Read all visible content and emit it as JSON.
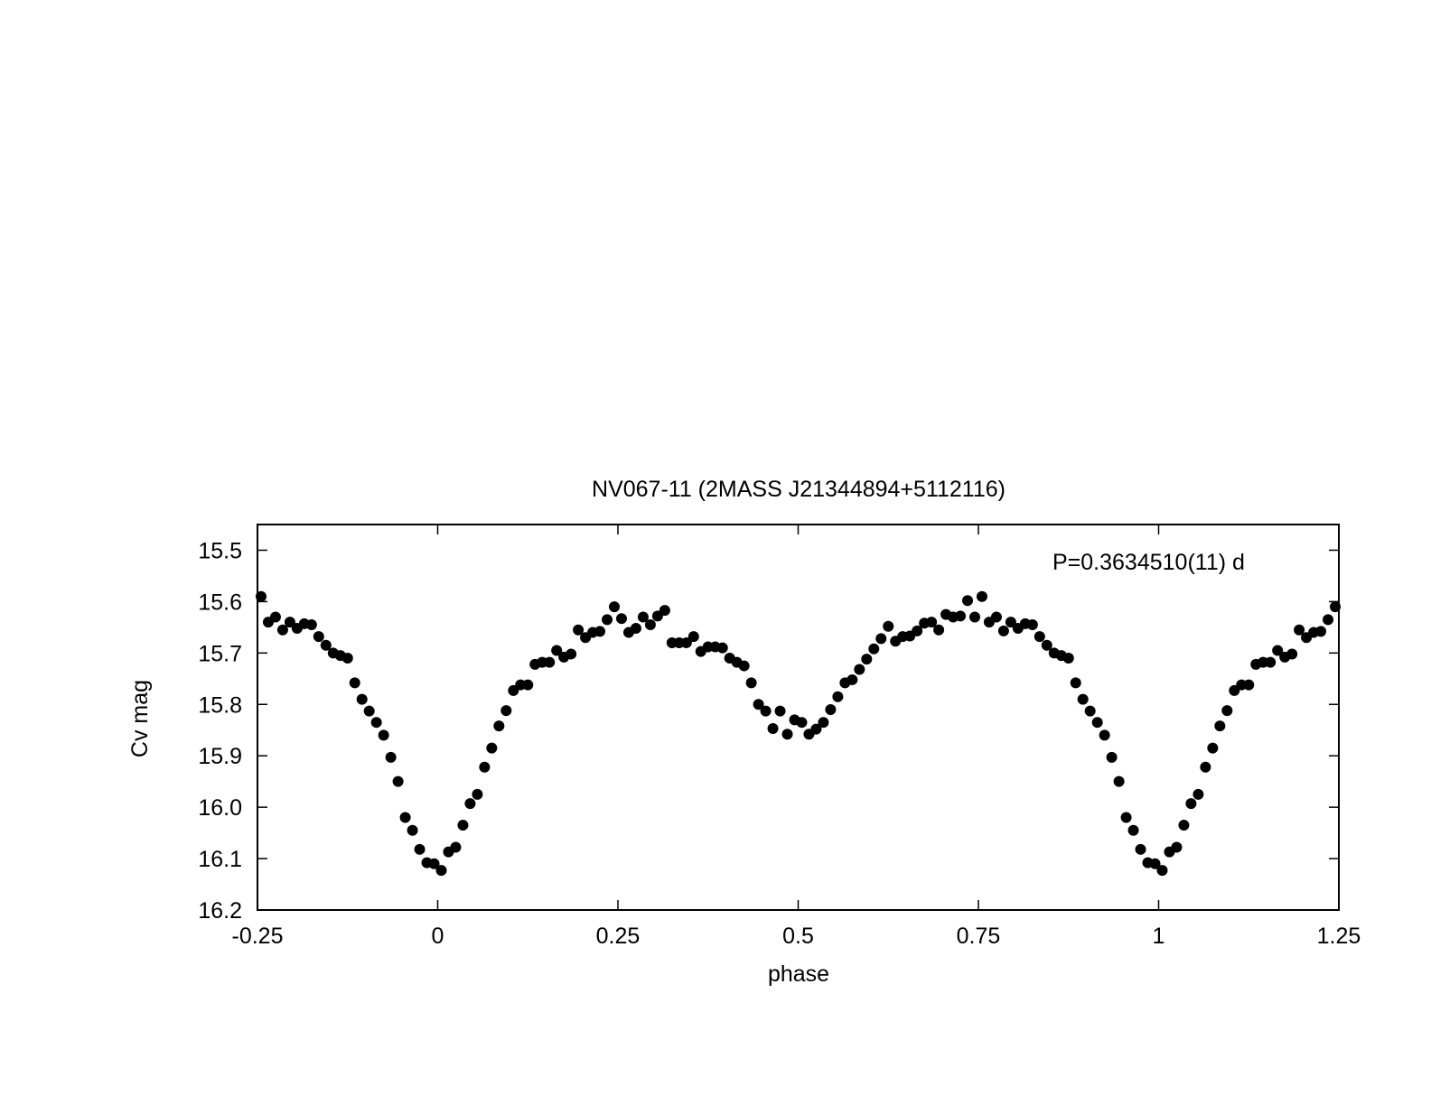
{
  "chart_data": {
    "type": "scatter",
    "title": "NV067-11 (2MASS J21344894+5112116)",
    "xlabel": "phase",
    "ylabel": "Cv mag",
    "xlim": [
      -0.25,
      1.25
    ],
    "ylim": [
      15.45,
      16.2
    ],
    "y_inverted": true,
    "grid": false,
    "annotation": "P=0.3634510(11) d",
    "x_ticks": [
      {
        "value": -0.25,
        "label": "-0.25"
      },
      {
        "value": 0,
        "label": "0"
      },
      {
        "value": 0.25,
        "label": "0.25"
      },
      {
        "value": 0.5,
        "label": "0.5"
      },
      {
        "value": 0.75,
        "label": "0.75"
      },
      {
        "value": 1,
        "label": "1"
      },
      {
        "value": 1.25,
        "label": "1.25"
      }
    ],
    "y_ticks": [
      {
        "value": 15.5,
        "label": "15.5"
      },
      {
        "value": 15.6,
        "label": "15.6"
      },
      {
        "value": 15.7,
        "label": "15.7"
      },
      {
        "value": 15.8,
        "label": "15.8"
      },
      {
        "value": 15.9,
        "label": "15.9"
      },
      {
        "value": 16.0,
        "label": "16.0"
      },
      {
        "value": 16.1,
        "label": "16.1"
      },
      {
        "value": 16.2,
        "label": "16.2"
      }
    ],
    "marker_color": "#000000",
    "series": [
      {
        "x": [
          -0.245,
          -0.235,
          -0.225,
          -0.215,
          -0.205,
          -0.195,
          -0.185,
          -0.175,
          -0.165,
          -0.155,
          -0.145,
          -0.135,
          -0.125,
          -0.115,
          -0.105,
          -0.095,
          -0.085,
          -0.075,
          -0.065,
          -0.055,
          -0.045,
          -0.035,
          -0.025,
          -0.015,
          -0.005,
          0.005,
          0.015,
          0.025,
          0.035,
          0.045,
          0.055,
          0.065,
          0.075,
          0.085,
          0.095,
          0.105,
          0.115,
          0.125,
          0.135,
          0.145,
          0.155,
          0.165,
          0.175,
          0.185,
          0.195,
          0.205,
          0.215,
          0.225,
          0.235,
          0.245,
          0.255,
          0.265,
          0.275,
          0.285,
          0.295,
          0.305,
          0.315,
          0.325,
          0.335,
          0.345,
          0.355,
          0.365,
          0.375,
          0.385,
          0.395,
          0.405,
          0.415,
          0.425,
          0.435,
          0.445,
          0.455,
          0.465,
          0.475,
          0.485,
          0.495,
          0.505,
          0.515,
          0.525,
          0.535,
          0.545,
          0.555,
          0.565,
          0.575,
          0.585,
          0.595,
          0.605,
          0.615,
          0.625,
          0.635,
          0.645,
          0.655,
          0.665,
          0.675,
          0.685,
          0.695,
          0.705,
          0.715,
          0.725,
          0.735,
          0.745,
          0.755,
          0.765,
          0.775,
          0.785,
          0.795,
          0.805,
          0.815,
          0.825,
          0.835,
          0.845,
          0.855,
          0.865,
          0.875,
          0.885,
          0.895,
          0.905,
          0.915,
          0.925,
          0.935,
          0.945,
          0.955,
          0.965,
          0.975,
          0.985,
          0.995,
          1.005,
          1.015,
          1.025,
          1.035,
          1.045,
          1.055,
          1.065,
          1.075,
          1.085,
          1.095,
          1.105,
          1.115,
          1.125,
          1.135,
          1.145,
          1.155,
          1.165,
          1.175,
          1.185,
          1.195,
          1.205,
          1.215,
          1.225,
          1.235,
          1.245
        ],
        "y": [
          15.59,
          15.64,
          15.63,
          15.655,
          15.64,
          15.652,
          15.643,
          15.645,
          15.668,
          15.685,
          15.7,
          15.705,
          15.71,
          15.758,
          15.79,
          15.813,
          15.835,
          15.86,
          15.903,
          15.95,
          16.02,
          16.045,
          16.082,
          16.108,
          16.11,
          16.123,
          16.087,
          16.078,
          16.035,
          15.993,
          15.975,
          15.922,
          15.885,
          15.842,
          15.812,
          15.773,
          15.762,
          15.762,
          15.722,
          15.718,
          15.718,
          15.695,
          15.708,
          15.702,
          15.655,
          15.67,
          15.66,
          15.658,
          15.635,
          15.61,
          15.633,
          15.66,
          15.652,
          15.63,
          15.645,
          15.628,
          15.617,
          15.68,
          15.68,
          15.68,
          15.668,
          15.697,
          15.688,
          15.688,
          15.69,
          15.71,
          15.718,
          15.725,
          15.758,
          15.8,
          15.813,
          15.847,
          15.813,
          15.858,
          15.83,
          15.835,
          15.858,
          15.848,
          15.835,
          15.81,
          15.785,
          15.758,
          15.752,
          15.732,
          15.712,
          15.692,
          15.672,
          15.648,
          15.677,
          15.668,
          15.667,
          15.657,
          15.642,
          15.64,
          15.655,
          15.625,
          15.63,
          15.628,
          15.598,
          15.63,
          15.59,
          15.64,
          15.63,
          15.657,
          15.64,
          15.652,
          15.643,
          15.645,
          15.668,
          15.685,
          15.7,
          15.705,
          15.71,
          15.758,
          15.79,
          15.813,
          15.835,
          15.86,
          15.903,
          15.95,
          16.02,
          16.045,
          16.082,
          16.108,
          16.11,
          16.123,
          16.087,
          16.078,
          16.035,
          15.993,
          15.975,
          15.922,
          15.885,
          15.842,
          15.812,
          15.773,
          15.762,
          15.762,
          15.722,
          15.718,
          15.718,
          15.695,
          15.708,
          15.702,
          15.655,
          15.67,
          15.66,
          15.658,
          15.635,
          15.61
        ]
      }
    ]
  }
}
